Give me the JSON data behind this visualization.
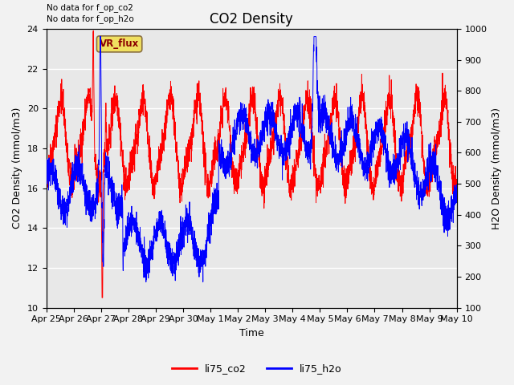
{
  "title": "CO2 Density",
  "xlabel": "Time",
  "ylabel_left": "CO2 Density (mmol/m3)",
  "ylabel_right": "H2O Density (mmol/m3)",
  "ylim_left": [
    10,
    24
  ],
  "ylim_right": [
    100,
    1000
  ],
  "yticks_left": [
    10,
    12,
    14,
    16,
    18,
    20,
    22,
    24
  ],
  "yticks_right": [
    100,
    200,
    300,
    400,
    500,
    600,
    700,
    800,
    900,
    1000
  ],
  "note_line1": "No data for f_op_co2",
  "note_line2": "No data for f_op_h2o",
  "vr_flux_label": "VR_flux",
  "legend_labels": [
    "li75_co2",
    "li75_h2o"
  ],
  "xtick_labels": [
    "Apr 25",
    "Apr 26",
    "Apr 27",
    "Apr 28",
    "Apr 29",
    "Apr 30",
    "May 1",
    "May 2",
    "May 3",
    "May 4",
    "May 5",
    "May 6",
    "May 7",
    "May 8",
    "May 9",
    "May 10"
  ],
  "fig_facecolor": "#f2f2f2",
  "ax_facecolor": "#e8e8e8",
  "grid_color": "white",
  "title_fontsize": 12,
  "axis_fontsize": 9,
  "tick_fontsize": 8,
  "note_fontsize": 7.5,
  "legend_fontsize": 9
}
